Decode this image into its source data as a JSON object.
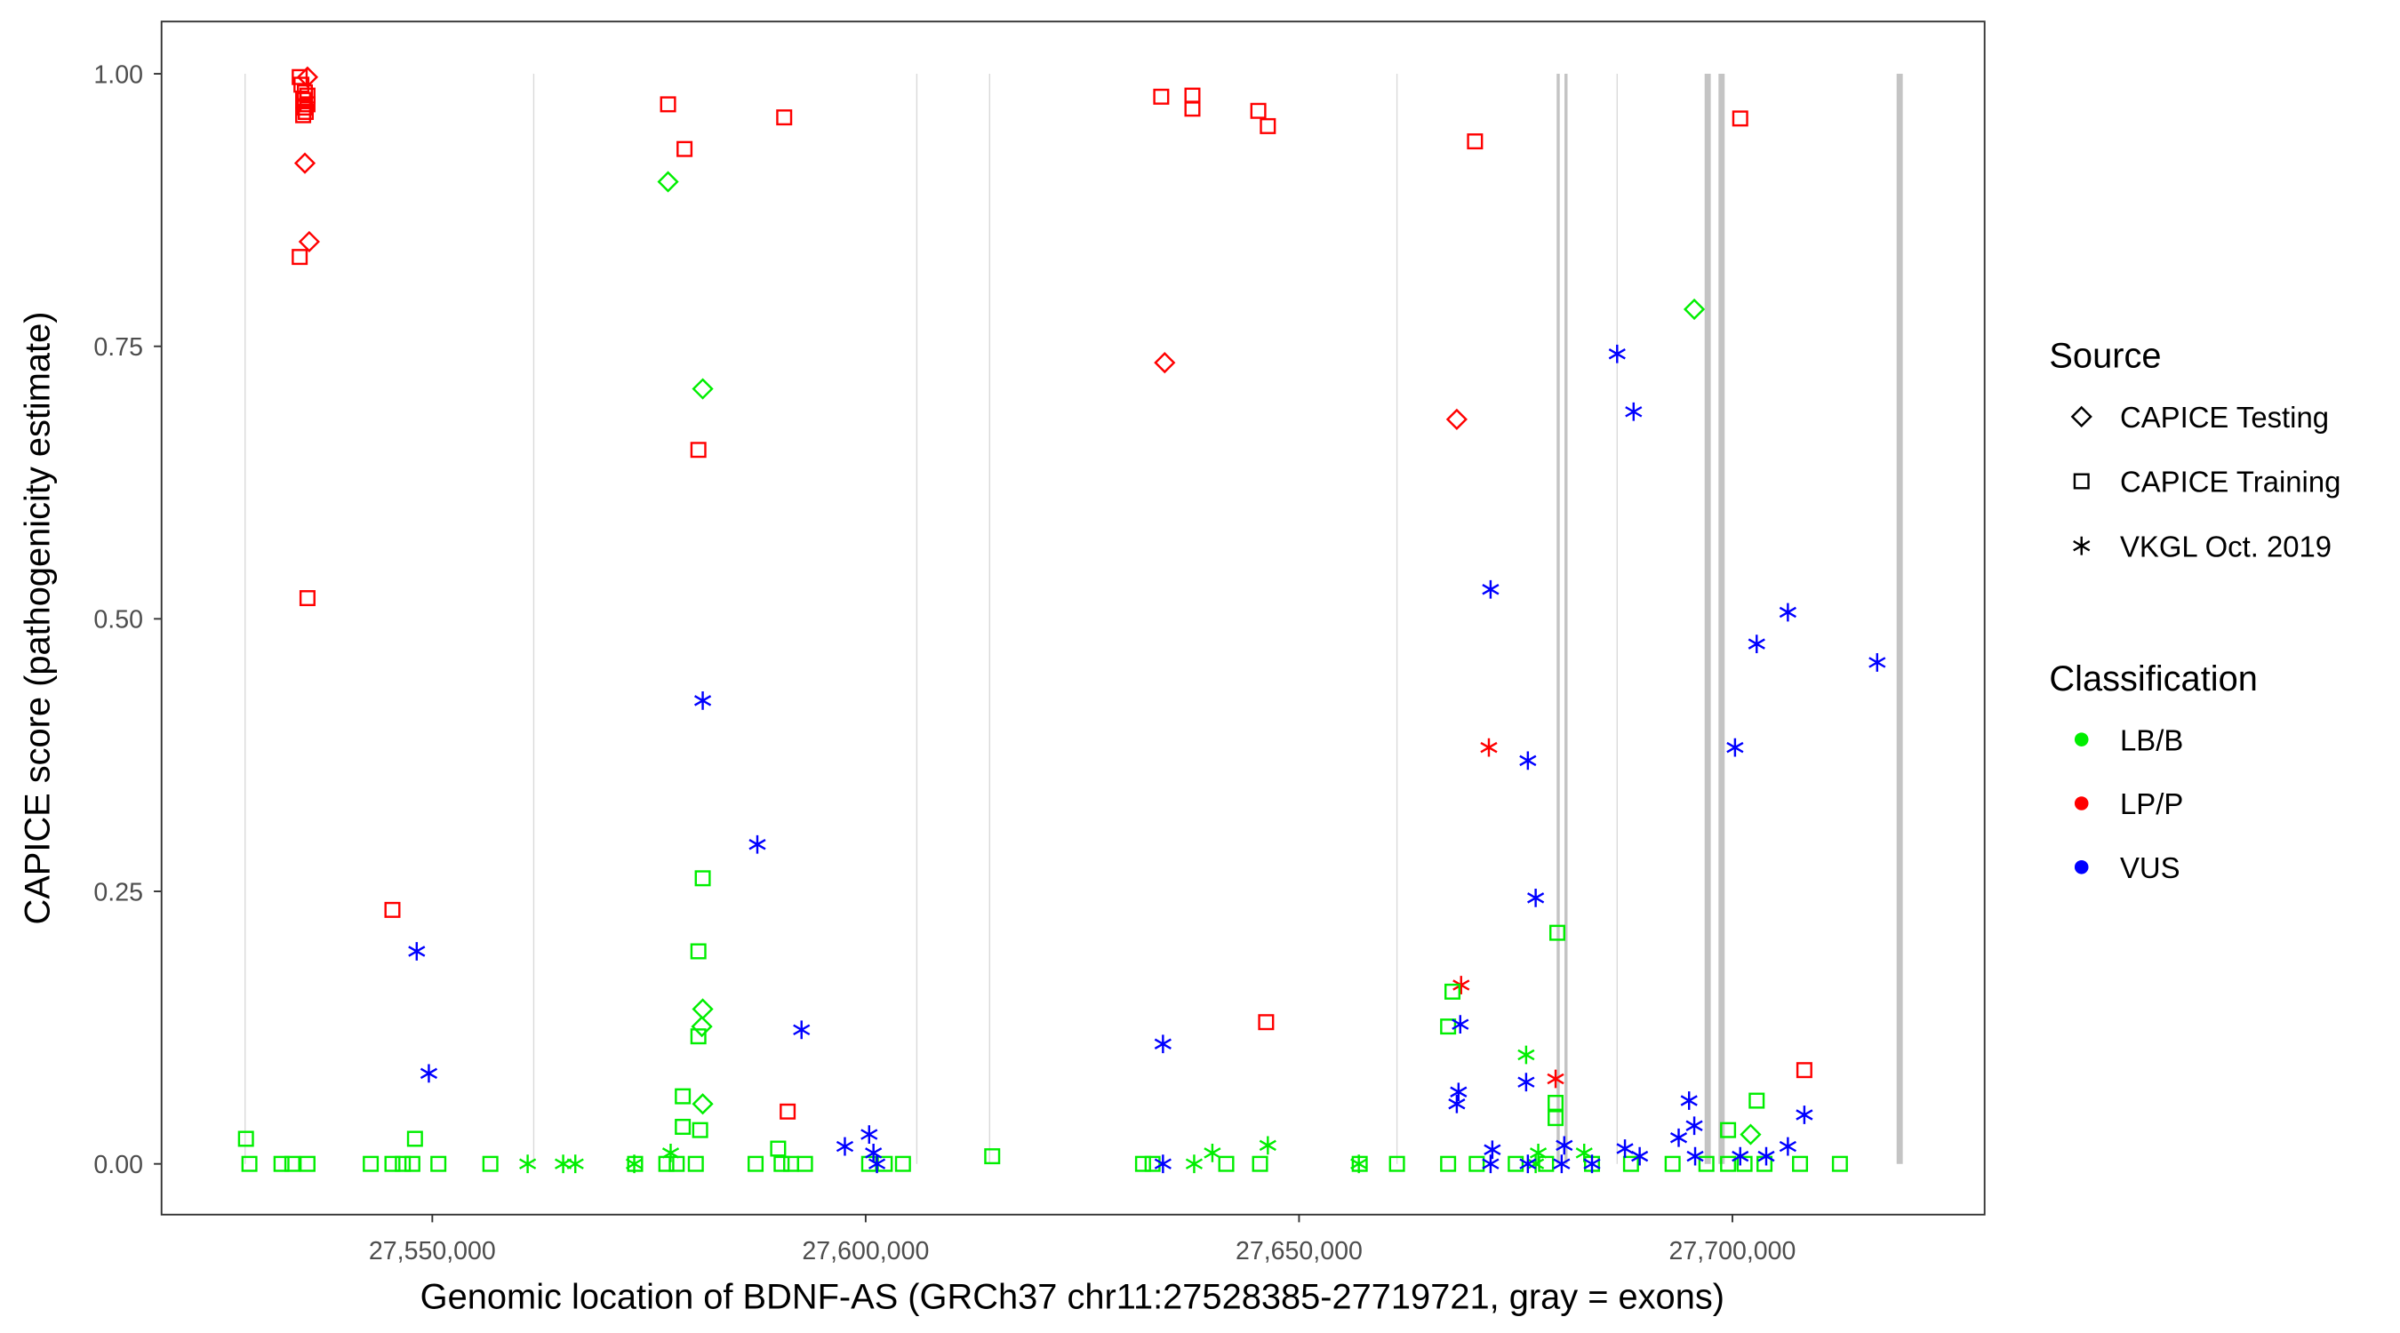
{
  "chart_data": {
    "type": "scatter",
    "title": "",
    "xlabel": "Genomic location of BDNF-AS (GRCh37 chr11:27528385-27719721, gray = exons)",
    "ylabel": "CAPICE score (pathogenicity estimate)",
    "xlim": [
      27518000,
      27726000
    ],
    "ylim": [
      -0.045,
      1.05
    ],
    "x_ticks": [
      {
        "value": 27550000,
        "label": "27,550,000"
      },
      {
        "value": 27600000,
        "label": "27,600,000"
      },
      {
        "value": 27650000,
        "label": "27,650,000"
      },
      {
        "value": 27700000,
        "label": "27,700,000"
      }
    ],
    "y_ticks": [
      {
        "value": 0,
        "label": "0.00"
      },
      {
        "value": 0.25,
        "label": "0.25"
      },
      {
        "value": 0.5,
        "label": "0.50"
      },
      {
        "value": 0.75,
        "label": "0.75"
      },
      {
        "value": 1,
        "label": "1.00"
      }
    ],
    "grid": false,
    "exons": [
      {
        "pos": 27528400,
        "weight": "thin"
      },
      {
        "pos": 27561700,
        "weight": "thin"
      },
      {
        "pos": 27605900,
        "weight": "thin"
      },
      {
        "pos": 27614300,
        "weight": "thin"
      },
      {
        "pos": 27661300,
        "weight": "thin"
      },
      {
        "pos": 27679900,
        "weight": "medium"
      },
      {
        "pos": 27680800,
        "weight": "medium"
      },
      {
        "pos": 27686700,
        "weight": "thin"
      },
      {
        "pos": 27697150,
        "weight": "thick"
      },
      {
        "pos": 27698750,
        "weight": "thick"
      },
      {
        "pos": 27719300,
        "weight": "thick"
      }
    ],
    "legend": {
      "placement": "right",
      "source": {
        "title": "Source",
        "items": [
          {
            "label": "CAPICE Testing",
            "shape": "diamond"
          },
          {
            "label": "CAPICE Training",
            "shape": "square"
          },
          {
            "label": "VKGL Oct. 2019",
            "shape": "asterisk"
          }
        ]
      },
      "classification": {
        "title": "Classification",
        "items": [
          {
            "label": "LB/B",
            "color": "#00ee00"
          },
          {
            "label": "LP/P",
            "color": "#ff0000"
          },
          {
            "label": "VUS",
            "color": "#0000ff"
          }
        ]
      }
    },
    "series": [
      {
        "source": "CAPICE Training",
        "classification": "LP/P",
        "points": [
          [
            27534700,
            0.997
          ],
          [
            27534900,
            0.99
          ],
          [
            27535300,
            0.983
          ],
          [
            27535100,
            0.976
          ],
          [
            27535300,
            0.969
          ],
          [
            27535400,
            0.965
          ],
          [
            27535600,
            0.972
          ],
          [
            27535100,
            0.962
          ],
          [
            27535600,
            0.98
          ],
          [
            27534700,
            0.832
          ],
          [
            27535600,
            0.519
          ],
          [
            27545400,
            0.233
          ],
          [
            27577200,
            0.972
          ],
          [
            27579100,
            0.931
          ],
          [
            27580700,
            0.655
          ],
          [
            27590600,
            0.96
          ],
          [
            27591000,
            0.048
          ],
          [
            27634100,
            0.979
          ],
          [
            27637700,
            0.98
          ],
          [
            27637700,
            0.968
          ],
          [
            27645300,
            0.966
          ],
          [
            27646400,
            0.952
          ],
          [
            27646200,
            0.13
          ],
          [
            27670300,
            0.938
          ],
          [
            27700900,
            0.959
          ],
          [
            27708300,
            0.086
          ]
        ]
      },
      {
        "source": "CAPICE Testing",
        "classification": "LP/P",
        "points": [
          [
            27535600,
            0.997
          ],
          [
            27535300,
            0.918
          ],
          [
            27535800,
            0.846
          ],
          [
            27634500,
            0.735
          ],
          [
            27668200,
            0.683
          ]
        ]
      },
      {
        "source": "VKGL Oct. 2019",
        "classification": "LP/P",
        "points": [
          [
            27671900,
            0.382
          ],
          [
            27668700,
            0.164
          ],
          [
            27679600,
            0.078
          ]
        ]
      },
      {
        "source": "CAPICE Testing",
        "classification": "LB/B",
        "points": [
          [
            27577200,
            0.901
          ],
          [
            27581200,
            0.711
          ],
          [
            27581200,
            0.142
          ],
          [
            27581100,
            0.126
          ],
          [
            27581200,
            0.055
          ],
          [
            27695600,
            0.784
          ],
          [
            27702100,
            0.027
          ]
        ]
      },
      {
        "source": "CAPICE Training",
        "classification": "LB/B",
        "points": [
          [
            27581200,
            0.262
          ],
          [
            27580700,
            0.195
          ],
          [
            27580700,
            0.117
          ],
          [
            27578900,
            0.062
          ],
          [
            27578900,
            0.034
          ],
          [
            27580900,
            0.031
          ],
          [
            27528500,
            0.023
          ],
          [
            27548000,
            0.023
          ],
          [
            27679800,
            0.212
          ],
          [
            27667700,
            0.158
          ],
          [
            27667200,
            0.126
          ],
          [
            27702800,
            0.058
          ],
          [
            27679600,
            0.056
          ],
          [
            27679600,
            0.042
          ],
          [
            27699500,
            0.031
          ],
          [
            27589900,
            0.014
          ],
          [
            27614600,
            0.007
          ],
          [
            27528900,
            0
          ],
          [
            27532600,
            0
          ],
          [
            27533850,
            0
          ],
          [
            27535600,
            0
          ],
          [
            27542900,
            0
          ],
          [
            27545400,
            0
          ],
          [
            27546600,
            0
          ],
          [
            27547700,
            0
          ],
          [
            27550700,
            0
          ],
          [
            27556700,
            0
          ],
          [
            27573400,
            0
          ],
          [
            27577000,
            0
          ],
          [
            27578200,
            0
          ],
          [
            27580400,
            0
          ],
          [
            27587300,
            0
          ],
          [
            27590300,
            0
          ],
          [
            27591400,
            0
          ],
          [
            27593000,
            0
          ],
          [
            27600400,
            0
          ],
          [
            27602200,
            0
          ],
          [
            27604300,
            0
          ],
          [
            27632000,
            0
          ],
          [
            27633100,
            0
          ],
          [
            27641600,
            0
          ],
          [
            27645500,
            0
          ],
          [
            27657000,
            0
          ],
          [
            27661300,
            0
          ],
          [
            27667200,
            0
          ],
          [
            27670500,
            0
          ],
          [
            27675000,
            0
          ],
          [
            27678500,
            0
          ],
          [
            27683800,
            0
          ],
          [
            27688300,
            0
          ],
          [
            27693100,
            0
          ],
          [
            27697000,
            0
          ],
          [
            27699500,
            0
          ],
          [
            27701400,
            0
          ],
          [
            27703700,
            0
          ],
          [
            27707800,
            0
          ],
          [
            27712400,
            0
          ]
        ]
      },
      {
        "source": "VKGL Oct. 2019",
        "classification": "LB/B",
        "points": [
          [
            27561000,
            0
          ],
          [
            27565100,
            0
          ],
          [
            27566500,
            0
          ],
          [
            27573300,
            0
          ],
          [
            27577500,
            0.01
          ],
          [
            27640000,
            0.01
          ],
          [
            27637900,
            0
          ],
          [
            27646400,
            0.017
          ],
          [
            27676200,
            0.1
          ],
          [
            27656900,
            0
          ],
          [
            27677600,
            0.01
          ],
          [
            27682900,
            0.01
          ],
          [
            27677300,
            0
          ]
        ]
      },
      {
        "source": "VKGL Oct. 2019",
        "classification": "VUS",
        "points": [
          [
            27548200,
            0.195
          ],
          [
            27549600,
            0.083
          ],
          [
            27581200,
            0.425
          ],
          [
            27587500,
            0.293
          ],
          [
            27592600,
            0.123
          ],
          [
            27597600,
            0.016
          ],
          [
            27600400,
            0.027
          ],
          [
            27600900,
            0.01
          ],
          [
            27601300,
            0
          ],
          [
            27634300,
            0.11
          ],
          [
            27634300,
            0
          ],
          [
            27668200,
            0.055
          ],
          [
            27668400,
            0.066
          ],
          [
            27668600,
            0.128
          ],
          [
            27672100,
            0.527
          ],
          [
            27676400,
            0.37
          ],
          [
            27677300,
            0.244
          ],
          [
            27676200,
            0.075
          ],
          [
            27676400,
            0
          ],
          [
            27672300,
            0.013
          ],
          [
            27686700,
            0.743
          ],
          [
            27688600,
            0.69
          ],
          [
            27680600,
            0.017
          ],
          [
            27683800,
            0
          ],
          [
            27687600,
            0.014
          ],
          [
            27689300,
            0.007
          ],
          [
            27695000,
            0.058
          ],
          [
            27695600,
            0.035
          ],
          [
            27693800,
            0.024
          ],
          [
            27695700,
            0.007
          ],
          [
            27700300,
            0.382
          ],
          [
            27702800,
            0.477
          ],
          [
            27706400,
            0.506
          ],
          [
            27716700,
            0.46
          ],
          [
            27700900,
            0.007
          ],
          [
            27703900,
            0.007
          ],
          [
            27706400,
            0.016
          ],
          [
            27708300,
            0.045
          ],
          [
            27680300,
            0
          ],
          [
            27672100,
            0
          ]
        ]
      }
    ]
  }
}
